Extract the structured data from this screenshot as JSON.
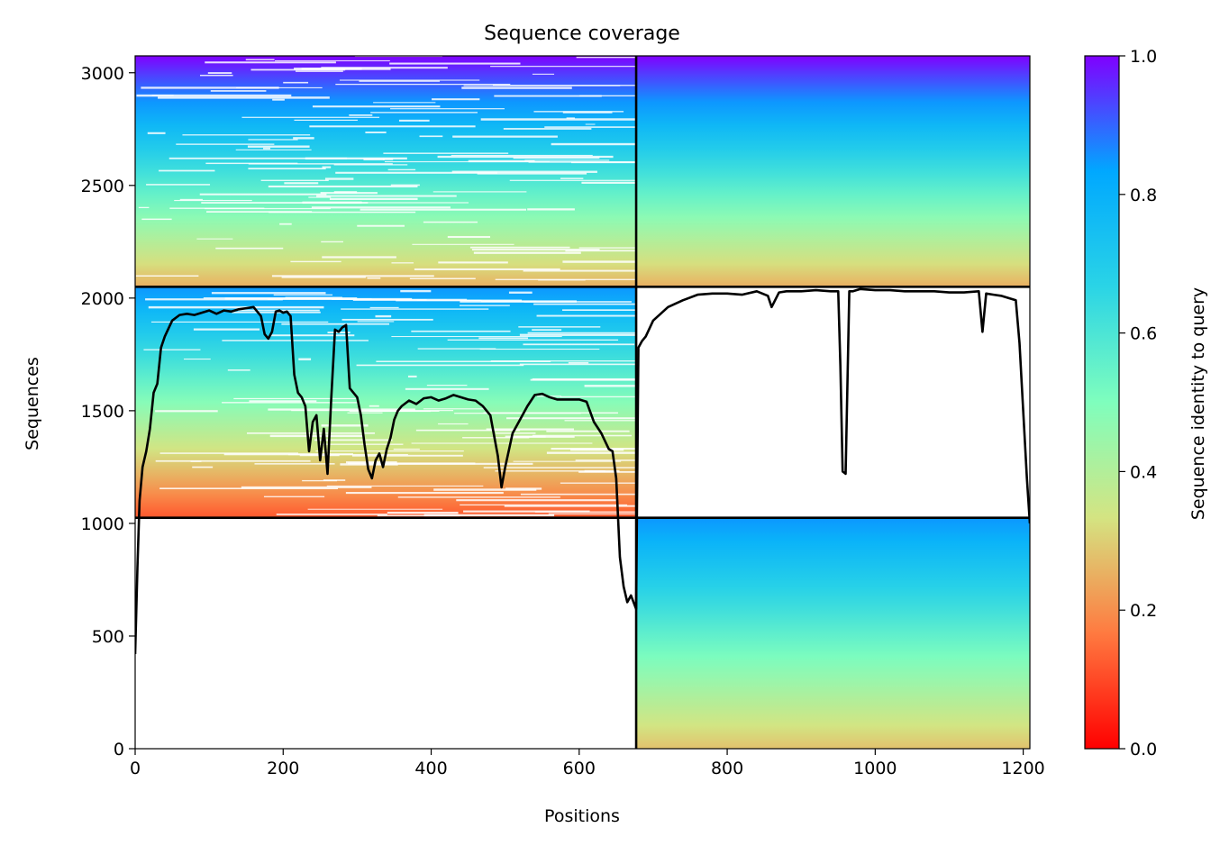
{
  "chart_data": {
    "type": "heatmap",
    "title": "Sequence coverage",
    "xlabel": "Positions",
    "ylabel": "Sequences",
    "xlim": [
      0,
      1209
    ],
    "ylim": [
      0,
      3075
    ],
    "xticks": [
      0,
      200,
      400,
      600,
      800,
      1000,
      1200
    ],
    "yticks": [
      0,
      500,
      1000,
      1500,
      2000,
      2500,
      3000
    ],
    "grid": false,
    "colorbar": {
      "label": "Sequence identity to query",
      "colormap": "rainbow_r",
      "range": [
        0,
        1
      ],
      "ticks": [
        0.0,
        0.2,
        0.4,
        0.6,
        0.8,
        1.0
      ],
      "tick_labels": [
        "0.0",
        "0.2",
        "0.4",
        "0.6",
        "0.8",
        "1.0"
      ],
      "stops": [
        "#ff0000",
        "#ff7a40",
        "#d4e482",
        "#7ffebd",
        "#2ad4e6",
        "#00a8ff",
        "#8000ff"
      ]
    },
    "block_boundaries": {
      "x": 677,
      "y": [
        1025,
        2050
      ]
    },
    "blocks": [
      {
        "x_range": [
          0,
          677
        ],
        "y_range": [
          2050,
          3075
        ],
        "identity_bottom": 0.25,
        "identity_top": 1.0,
        "coverage": "partial"
      },
      {
        "x_range": [
          677,
          1209
        ],
        "y_range": [
          2050,
          3075
        ],
        "identity_bottom": 0.25,
        "identity_top": 1.0,
        "coverage": "full"
      },
      {
        "x_range": [
          0,
          677
        ],
        "y_range": [
          1025,
          2050
        ],
        "identity_bottom": 0.12,
        "identity_top": 0.85,
        "coverage": "partial"
      },
      {
        "x_range": [
          677,
          1209
        ],
        "y_range": [
          1025,
          2050
        ],
        "identity_bottom": null,
        "identity_top": null,
        "coverage": "empty"
      },
      {
        "x_range": [
          0,
          677
        ],
        "y_range": [
          0,
          1025
        ],
        "identity_bottom": null,
        "identity_top": null,
        "coverage": "empty"
      },
      {
        "x_range": [
          677,
          1209
        ],
        "y_range": [
          0,
          1025
        ],
        "identity_bottom": 0.28,
        "identity_top": 0.85,
        "coverage": "full"
      }
    ],
    "series": [
      {
        "x": [
          0,
          3,
          6,
          10,
          15,
          20,
          25,
          30,
          35,
          40,
          50,
          60,
          70,
          80,
          90,
          100,
          110,
          120,
          130,
          140,
          150,
          160,
          170,
          175,
          180,
          185,
          190,
          195,
          200,
          205,
          210,
          215,
          220,
          225,
          230,
          235,
          240,
          245,
          250,
          255,
          260,
          265,
          270,
          275,
          280,
          285,
          290,
          295,
          300,
          305,
          310,
          315,
          320,
          325,
          330,
          335,
          340,
          345,
          350,
          355,
          360,
          370,
          380,
          390,
          400,
          410,
          420,
          430,
          440,
          450,
          460,
          470,
          480,
          490,
          495,
          500,
          510,
          520,
          530,
          540,
          550,
          560,
          570,
          580,
          590,
          600,
          610,
          620,
          630,
          640,
          645,
          650,
          655,
          660,
          665,
          670,
          677,
          680,
          685,
          690,
          700,
          720,
          740,
          760,
          780,
          800,
          820,
          840,
          855,
          860,
          870,
          880,
          900,
          920,
          940,
          950,
          953,
          956,
          960,
          965,
          970,
          980,
          1000,
          1020,
          1040,
          1060,
          1080,
          1100,
          1120,
          1140,
          1145,
          1150,
          1160,
          1170,
          1180,
          1190,
          1195,
          1200,
          1205,
          1209
        ],
        "y": [
          420,
          800,
          1100,
          1250,
          1320,
          1420,
          1580,
          1620,
          1780,
          1830,
          1900,
          1925,
          1930,
          1925,
          1935,
          1945,
          1930,
          1945,
          1940,
          1950,
          1955,
          1960,
          1920,
          1840,
          1820,
          1850,
          1940,
          1945,
          1935,
          1940,
          1920,
          1660,
          1580,
          1560,
          1520,
          1320,
          1450,
          1480,
          1280,
          1420,
          1220,
          1560,
          1860,
          1850,
          1870,
          1880,
          1600,
          1580,
          1560,
          1480,
          1350,
          1240,
          1200,
          1280,
          1310,
          1250,
          1330,
          1380,
          1460,
          1500,
          1520,
          1545,
          1530,
          1555,
          1560,
          1545,
          1555,
          1570,
          1560,
          1550,
          1545,
          1520,
          1480,
          1300,
          1160,
          1250,
          1400,
          1460,
          1520,
          1570,
          1575,
          1560,
          1550,
          1550,
          1550,
          1550,
          1540,
          1450,
          1400,
          1330,
          1320,
          1200,
          850,
          720,
          650,
          680,
          620,
          1780,
          1810,
          1830,
          1900,
          1960,
          1990,
          2015,
          2020,
          2020,
          2015,
          2030,
          2010,
          1960,
          2025,
          2030,
          2030,
          2035,
          2030,
          2030,
          1700,
          1230,
          1220,
          2030,
          2030,
          2040,
          2035,
          2035,
          2030,
          2030,
          2030,
          2025,
          2025,
          2030,
          1850,
          2020,
          2015,
          2010,
          2000,
          1990,
          1800,
          1500,
          1200,
          1000
        ]
      }
    ]
  }
}
